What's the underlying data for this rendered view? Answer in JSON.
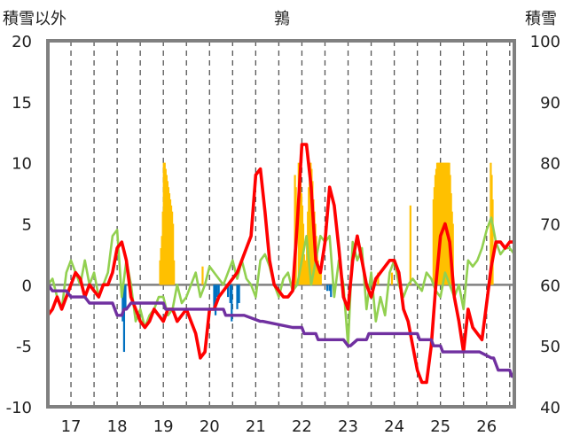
{
  "chart_data": {
    "type": "line",
    "title": "鶉",
    "ylabel_left": "積雪以外",
    "ylabel_right": "積雪",
    "x_ticks": [
      "17",
      "18",
      "19",
      "20",
      "21",
      "22",
      "23",
      "24",
      "25",
      "26"
    ],
    "x_range": [
      16.5,
      26.6
    ],
    "ylim_left": [
      -10,
      20
    ],
    "ylim_right": [
      40,
      100
    ],
    "y_ticks_left": [
      20,
      15,
      10,
      5,
      0,
      -5,
      -10
    ],
    "y_ticks_right": [
      100,
      90,
      80,
      70,
      60,
      50,
      40
    ],
    "grid": "vertical-dashed",
    "colors": {
      "red_series": "#ff0000",
      "green_series": "#92d050",
      "purple_series": "#7030a0",
      "orange_bars": "#ffc000",
      "blue_bars": "#0070c0",
      "frame": "#808080"
    },
    "series": [
      {
        "axis": "left",
        "color": "red",
        "x": [
          16.5,
          16.6,
          16.7,
          16.8,
          16.9,
          17.0,
          17.1,
          17.2,
          17.3,
          17.4,
          17.5,
          17.6,
          17.7,
          17.8,
          17.9,
          18.0,
          18.1,
          18.2,
          18.3,
          18.4,
          18.5,
          18.6,
          18.7,
          18.8,
          18.9,
          19.0,
          19.1,
          19.2,
          19.3,
          19.4,
          19.5,
          19.6,
          19.7,
          19.8,
          19.9,
          20.0,
          20.1,
          20.2,
          20.3,
          20.4,
          20.5,
          20.6,
          20.7,
          20.8,
          20.9,
          21.0,
          21.1,
          21.2,
          21.3,
          21.4,
          21.5,
          21.6,
          21.7,
          21.8,
          21.9,
          22.0,
          22.1,
          22.2,
          22.3,
          22.4,
          22.5,
          22.6,
          22.7,
          22.8,
          22.9,
          23.0,
          23.1,
          23.2,
          23.3,
          23.4,
          23.5,
          23.6,
          23.7,
          23.8,
          23.9,
          24.0,
          24.1,
          24.2,
          24.3,
          24.4,
          24.5,
          24.6,
          24.7,
          24.8,
          24.9,
          25.0,
          25.1,
          25.2,
          25.3,
          25.4,
          25.5,
          25.6,
          25.7,
          25.8,
          25.9,
          26.0,
          26.1,
          26.2,
          26.3,
          26.4,
          26.5,
          26.6
        ],
        "values": [
          -2.5,
          -2.0,
          -1.0,
          -2.0,
          -1.0,
          0.0,
          1.0,
          0.5,
          -1.0,
          0.0,
          -0.5,
          -1.0,
          0.0,
          0.0,
          1.0,
          3.0,
          3.5,
          2.0,
          -1.0,
          -2.0,
          -3.0,
          -3.5,
          -3.0,
          -2.0,
          -2.5,
          -3.0,
          -2.0,
          -2.0,
          -3.0,
          -2.5,
          -2.0,
          -3.0,
          -4.0,
          -6.0,
          -5.5,
          -2.0,
          -2.0,
          -1.0,
          -0.5,
          0.0,
          0.5,
          1.0,
          2.0,
          3.0,
          4.0,
          9.0,
          9.5,
          6.0,
          2.0,
          0.0,
          -0.5,
          -1.0,
          -1.0,
          -0.5,
          5.0,
          11.5,
          11.5,
          8.0,
          2.0,
          1.0,
          3.5,
          8.0,
          6.5,
          3.0,
          -1.0,
          -2.0,
          2.0,
          4.0,
          2.0,
          0.0,
          -1.0,
          0.5,
          1.0,
          1.5,
          2.0,
          2.0,
          1.0,
          -2.0,
          -3.0,
          -5.0,
          -7.0,
          -8.0,
          -8.0,
          -5.0,
          0.0,
          4.0,
          5.0,
          3.5,
          -1.0,
          -3.0,
          -5.5,
          -2.0,
          -3.5,
          -4.0,
          -4.5,
          -1.5,
          1.5,
          3.5,
          3.5,
          3.0,
          3.5,
          3.5
        ]
      },
      {
        "axis": "left",
        "color": "green",
        "x": [
          16.5,
          16.6,
          16.7,
          16.8,
          16.9,
          17.0,
          17.1,
          17.2,
          17.3,
          17.4,
          17.5,
          17.6,
          17.7,
          17.8,
          17.9,
          18.0,
          18.1,
          18.2,
          18.3,
          18.4,
          18.5,
          18.6,
          18.7,
          18.8,
          18.9,
          19.0,
          19.1,
          19.2,
          19.3,
          19.4,
          19.5,
          19.6,
          19.7,
          19.8,
          19.9,
          20.0,
          20.1,
          20.2,
          20.3,
          20.4,
          20.5,
          20.6,
          20.7,
          20.8,
          20.9,
          21.0,
          21.1,
          21.2,
          21.3,
          21.4,
          21.5,
          21.6,
          21.7,
          21.8,
          21.9,
          22.0,
          22.1,
          22.2,
          22.3,
          22.4,
          22.5,
          22.6,
          22.7,
          22.8,
          22.9,
          23.0,
          23.1,
          23.2,
          23.3,
          23.4,
          23.5,
          23.6,
          23.7,
          23.8,
          23.9,
          24.0,
          24.1,
          24.2,
          24.3,
          24.4,
          24.5,
          24.6,
          24.7,
          24.8,
          24.9,
          25.0,
          25.1,
          25.2,
          25.3,
          25.4,
          25.5,
          25.6,
          25.7,
          25.8,
          25.9,
          26.0,
          26.1,
          26.2,
          26.3,
          26.4,
          26.5,
          26.6
        ],
        "values": [
          0.0,
          0.5,
          -1.0,
          -2.0,
          1.0,
          2.0,
          1.0,
          0.0,
          2.0,
          0.0,
          1.0,
          -1.0,
          0.0,
          1.0,
          4.0,
          4.5,
          -1.0,
          2.0,
          0.0,
          -3.0,
          -2.0,
          -3.5,
          -2.5,
          -2.0,
          -1.0,
          -1.0,
          -2.5,
          -2.0,
          0.0,
          -1.5,
          -1.0,
          0.0,
          1.0,
          -1.0,
          0.0,
          1.5,
          1.0,
          0.5,
          0.0,
          1.0,
          2.0,
          0.5,
          2.0,
          0.5,
          0.0,
          -1.0,
          2.0,
          2.5,
          1.5,
          0.0,
          -1.0,
          0.5,
          1.0,
          -0.5,
          0.0,
          2.0,
          4.0,
          0.0,
          2.0,
          4.0,
          3.5,
          4.0,
          -1.0,
          2.0,
          0.0,
          -5.0,
          3.5,
          2.0,
          3.0,
          -2.0,
          1.0,
          -3.0,
          -1.0,
          -2.5,
          1.0,
          2.0,
          0.0,
          -1.0,
          0.0,
          0.5,
          0.0,
          -0.5,
          1.0,
          0.5,
          -0.5,
          -1.0,
          1.0,
          0.0,
          -1.0,
          0.0,
          -2.0,
          2.0,
          1.5,
          2.0,
          3.0,
          4.5,
          5.5,
          3.5,
          2.5,
          3.0,
          3.0,
          2.5
        ]
      },
      {
        "axis": "right",
        "color": "purple",
        "x": [
          16.5,
          16.6,
          16.9,
          17.0,
          17.3,
          17.4,
          17.8,
          17.9,
          17.95,
          18.0,
          18.1,
          18.15,
          18.2,
          18.3,
          18.4,
          18.5,
          18.6,
          18.7,
          19.0,
          19.05,
          19.5,
          19.55,
          20.0,
          20.3,
          20.35,
          20.7,
          20.75,
          21.1,
          21.15,
          21.8,
          21.9,
          22.0,
          22.05,
          22.3,
          22.35,
          22.9,
          23.0,
          23.05,
          23.2,
          23.25,
          23.4,
          23.45,
          23.8,
          23.85,
          24.5,
          24.55,
          24.8,
          24.85,
          25.0,
          25.05,
          25.3,
          25.35,
          25.8,
          25.85,
          26.1,
          26.15,
          26.2,
          26.25,
          26.5,
          26.55
        ],
        "values": [
          60,
          59,
          59,
          58,
          58,
          57,
          57,
          57,
          56,
          55,
          55,
          56,
          56,
          57,
          57,
          57,
          57,
          57,
          57,
          56,
          56,
          56,
          56,
          56,
          55,
          55,
          55,
          54,
          54,
          53,
          53,
          53,
          52,
          52,
          51,
          51,
          50,
          50,
          51,
          51,
          51,
          52,
          52,
          52,
          52,
          51,
          51,
          50,
          50,
          49,
          49,
          49,
          49,
          49,
          48,
          48,
          47,
          46,
          46,
          45
        ]
      }
    ],
    "bars_right": {
      "color": "orange",
      "baseline": 60,
      "x": [
        18.93,
        18.95,
        18.97,
        18.99,
        19.01,
        19.03,
        19.05,
        19.07,
        19.09,
        19.11,
        19.13,
        19.15,
        19.17,
        19.19,
        19.21,
        19.23,
        19.85,
        21.85,
        21.87,
        21.93,
        21.95,
        21.97,
        21.99,
        22.01,
        22.03,
        22.05,
        22.07,
        22.09,
        22.11,
        22.13,
        22.15,
        22.17,
        22.19,
        22.21,
        22.23,
        22.25,
        22.27,
        22.29,
        22.31,
        22.33,
        22.35,
        22.37,
        22.39,
        22.41,
        23.35,
        23.65,
        23.95,
        24.35,
        24.85,
        24.87,
        24.89,
        24.91,
        24.93,
        24.95,
        24.97,
        24.99,
        25.01,
        25.03,
        25.05,
        25.07,
        25.09,
        25.11,
        25.13,
        25.15,
        25.17,
        25.19,
        25.21,
        25.23,
        25.25,
        25.27,
        26.07,
        26.09,
        26.11,
        26.13
      ],
      "values": [
        64,
        66,
        68,
        72,
        80,
        80,
        79,
        78,
        77,
        76,
        75,
        74,
        73,
        72,
        70,
        64,
        63,
        78,
        76,
        80,
        79,
        77,
        75,
        73,
        70,
        65,
        64,
        63,
        68,
        72,
        76,
        80,
        80,
        79,
        77,
        74,
        72,
        70,
        68,
        65,
        64,
        63,
        62,
        62,
        62,
        62,
        62,
        73,
        74,
        76,
        78,
        79,
        80,
        80,
        80,
        80,
        80,
        80,
        80,
        80,
        80,
        80,
        80,
        80,
        80,
        80,
        78,
        75,
        72,
        70,
        62,
        80,
        78,
        74
      ]
    },
    "bars_left": {
      "color": "blue",
      "baseline": 0,
      "x": [
        18.12,
        18.15,
        18.18,
        20.1,
        20.13,
        20.16,
        20.2,
        20.4,
        20.45,
        20.48,
        20.6,
        20.64,
        22.55,
        22.6,
        22.63
      ],
      "values": [
        -3.0,
        -5.5,
        -2.0,
        -2.0,
        -2.5,
        -1.0,
        -1.0,
        -1.0,
        -1.5,
        -3.0,
        -2.0,
        -1.5,
        -0.5,
        -0.5,
        -1.0
      ]
    }
  }
}
